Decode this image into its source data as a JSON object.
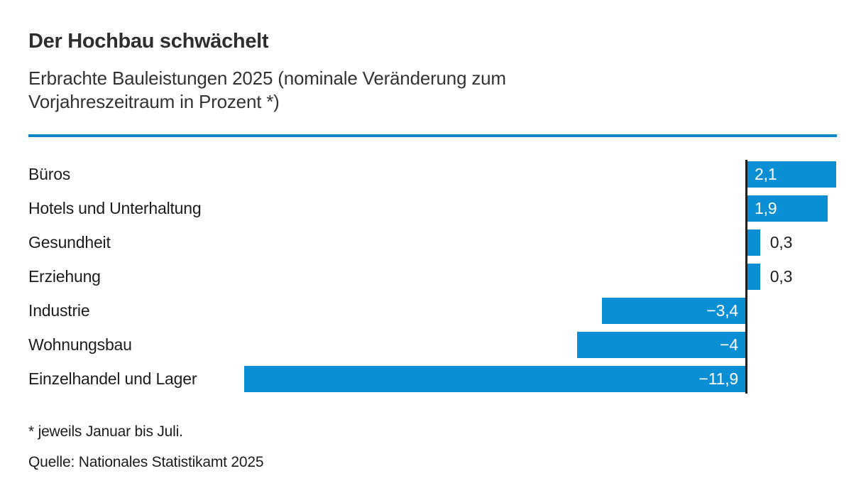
{
  "header": {
    "title": "Der Hochbau schwächelt",
    "subtitle_line1": "Erbrachte Bauleistungen 2025 (nominale Veränderung zum",
    "subtitle_line2": "Vorjahreszeitraum in Prozent *)"
  },
  "chart_data": {
    "type": "bar",
    "orientation": "horizontal",
    "title": "Der Hochbau schwächelt",
    "subtitle": "Erbrachte Bauleistungen 2025 (nominale Veränderung zum Vorjahreszeitraum in Prozent *)",
    "categories": [
      "Büros",
      "Hotels und Unterhaltung",
      "Gesundheit",
      "Erziehung",
      "Industrie",
      "Wohnungsbau",
      "Einzelhandel und Lager"
    ],
    "values": [
      2.1,
      1.9,
      0.3,
      0.3,
      -3.4,
      -4,
      -11.9
    ],
    "value_labels": [
      "2,1",
      "1,9",
      "0,3",
      "0,3",
      "−3,4",
      "−4",
      "−11,9"
    ],
    "xlabel": "",
    "ylabel": "",
    "xlim": [
      -12,
      2.2
    ],
    "grid": false,
    "legend": false,
    "bar_color": "#0b8fd4",
    "zero_axis_color": "#1d1d1b"
  },
  "footer": {
    "footnote": "* jeweils Januar bis Juli.",
    "source": "Quelle: Nationales Statistikamt 2025"
  },
  "colors": {
    "accent_blue": "#0b8fd4",
    "rule_blue": "#0b86c8",
    "text_dark": "#1c1c1c"
  }
}
